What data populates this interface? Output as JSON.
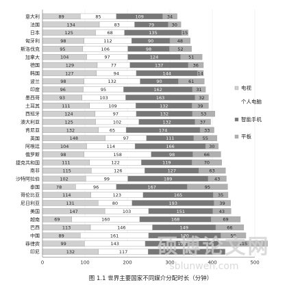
{
  "chart_data": {
    "type": "bar",
    "stacked": true,
    "orientation": "horizontal",
    "title": "图 1.1   世界主要国家不同媒介分配时长（分钟）",
    "categories": [
      "意大利",
      "法国",
      "日本",
      "匈牙利",
      "斯洛伐克",
      "加拿大",
      "德国",
      "韩国",
      "波兰",
      "印度",
      "墨西哥",
      "土耳其",
      "西班牙",
      "澳大利亚",
      "肯尼亚",
      "英国",
      "阿根廷",
      "俄罗斯",
      "捷克共和国",
      "南非",
      "沙特阿拉伯",
      "泰国",
      "哥伦比亚",
      "尼日利亚",
      "美国",
      "越南",
      "巴西",
      "中国",
      "菲律宾",
      "印尼"
    ],
    "series": [
      {
        "name": "电视",
        "color": "#d0d0d0",
        "values": [
          89,
          134,
          125,
          98,
          95,
          104,
          129,
          127,
          98,
          96,
          93,
          111,
          124,
          125,
          132,
          148,
          104,
          98,
          111,
          115,
          102,
          78,
          114,
          131,
          147,
          69,
          113,
          89,
          99,
          132
        ]
      },
      {
        "name": "个人电脑",
        "color": "#ffffff",
        "values": [
          85,
          83,
          68,
          112,
          106,
          97,
          77,
          94,
          132,
          95,
          103,
          109,
          97,
          102,
          65,
          97,
          114,
          158,
          122,
          126,
          99,
          96,
          123,
          80,
          103,
          160,
          146,
          161,
          143,
          117
        ]
      },
      {
        "name": "智能手机",
        "color": "#777777",
        "values": [
          109,
          79,
          135,
          90,
          98,
          124,
          137,
          144,
          90,
          162,
          163,
          132,
          132,
          132,
          174,
          111,
          166,
          98,
          119,
          127,
          189,
          167,
          165,
          193,
          151,
          168,
          149,
          170,
          173,
          181
        ]
      },
      {
        "name": "平板",
        "color": "#b0b0b0",
        "values": [
          34,
          30,
          15,
          48,
          52,
          51,
          36,
          14,
          61,
          31,
          32,
          39,
          53,
          37,
          33,
          55,
          30,
          66,
          70,
          63,
          43,
          95,
          35,
          39,
          43,
          69,
          66,
          59,
          115,
          null
        ]
      }
    ],
    "xticks": [
      0,
      100,
      200,
      300,
      400,
      500
    ],
    "xlim": [
      0,
      500
    ]
  },
  "watermark": {
    "main": "硕博论文网",
    "url": "sblunwen.com"
  }
}
